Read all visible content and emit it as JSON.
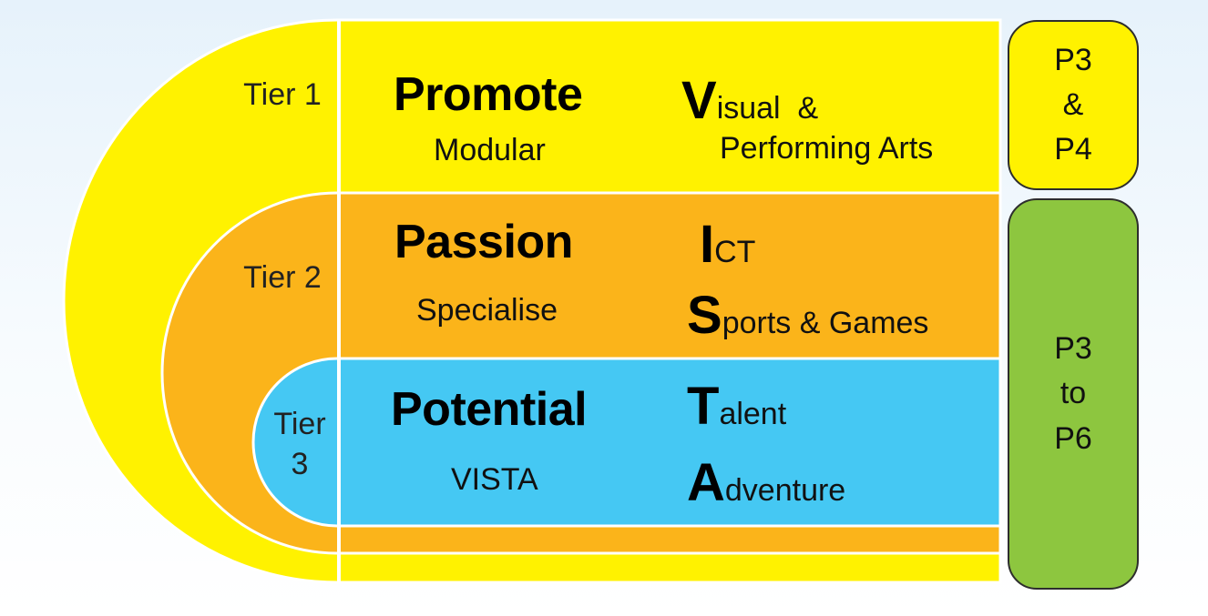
{
  "colors": {
    "tier1": "#fff200",
    "tier2": "#fbb41a",
    "tier3": "#45c8f3",
    "lower_levels": "#8dc63f"
  },
  "tiers": [
    {
      "label": "Tier 1",
      "headline": "Promote",
      "subheading": "Modular",
      "acronym": [
        {
          "cap": "V",
          "rest": "isual  &"
        },
        {
          "cap": "",
          "rest": "Performing Arts"
        }
      ]
    },
    {
      "label": "Tier 2",
      "headline": "Passion",
      "subheading": "Specialise",
      "acronym": [
        {
          "cap": "I",
          "rest": "CT"
        },
        {
          "cap": "S",
          "rest": "ports & Games"
        }
      ]
    },
    {
      "label_lines": [
        "Tier",
        "3"
      ],
      "headline": "Potential",
      "subheading": "VISTA",
      "acronym": [
        {
          "cap": "T",
          "rest": "alent"
        },
        {
          "cap": "A",
          "rest": "dventure"
        }
      ]
    }
  ],
  "levels": [
    {
      "lines": [
        "P3",
        "&",
        "P4"
      ]
    },
    {
      "lines": [
        "P3",
        "to",
        "P6"
      ]
    }
  ]
}
